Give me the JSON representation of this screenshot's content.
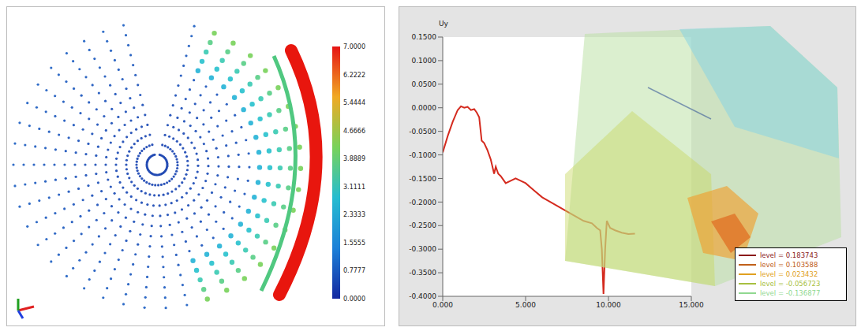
{
  "chart_data": [
    {
      "type": "point_cloud",
      "colorbar": {
        "range": [
          0,
          7
        ],
        "ticks": [
          {
            "value": 0,
            "label": "0.0000"
          },
          {
            "value": 0.7777,
            "label": "0.7777"
          },
          {
            "value": 1.5555,
            "label": "1.5555"
          },
          {
            "value": 2.3333,
            "label": "2.3333"
          },
          {
            "value": 3.1111,
            "label": "3.1111"
          },
          {
            "value": 3.8889,
            "label": "3.8889"
          },
          {
            "value": 4.6666,
            "label": "4.6666"
          },
          {
            "value": 5.4444,
            "label": "5.4444"
          },
          {
            "value": 6.2222,
            "label": "6.2222"
          },
          {
            "value": 7,
            "label": "7.0000"
          }
        ]
      }
    },
    {
      "type": "line",
      "y_label": "Uy",
      "color": "#d42a1e",
      "x": [
        0,
        0.3,
        0.6,
        0.9,
        1.1,
        1.3,
        1.5,
        1.7,
        1.9,
        2.05,
        2.2,
        2.35,
        2.5,
        2.7,
        2.9,
        3.1,
        3.2,
        3.35,
        3.5,
        3.8,
        4.1,
        4.4,
        4.7,
        5.0,
        5.5,
        6.0,
        6.5,
        7.0,
        7.5,
        8.0,
        8.5,
        9.0,
        9.3,
        9.5,
        9.6,
        9.7,
        9.8,
        9.9,
        10.1,
        10.4,
        10.8,
        11.2,
        11.6
      ],
      "values": [
        -0.095,
        -0.06,
        -0.03,
        -0.005,
        0.003,
        0.0,
        0.002,
        -0.005,
        -0.003,
        -0.01,
        -0.02,
        -0.07,
        -0.075,
        -0.09,
        -0.11,
        -0.14,
        -0.125,
        -0.14,
        -0.145,
        -0.16,
        -0.155,
        -0.15,
        -0.155,
        -0.16,
        -0.175,
        -0.19,
        -0.2,
        -0.21,
        -0.22,
        -0.23,
        -0.24,
        -0.245,
        -0.255,
        -0.26,
        -0.3,
        -0.395,
        -0.3,
        -0.24,
        -0.255,
        -0.26,
        -0.265,
        -0.268,
        -0.267
      ],
      "xlim": [
        0,
        15
      ],
      "xticks": [
        {
          "value": 0,
          "label": "0.000"
        },
        {
          "value": 5,
          "label": "5.000"
        },
        {
          "value": 10,
          "label": "10.000"
        },
        {
          "value": 15,
          "label": "15.000"
        }
      ],
      "ylim": [
        -0.4,
        0.15
      ],
      "yticks": [
        {
          "value": -0.4,
          "label": "-0.4000"
        },
        {
          "value": -0.35,
          "label": "-0.3500"
        },
        {
          "value": -0.3,
          "label": "-0.3000"
        },
        {
          "value": -0.25,
          "label": "-0.2500"
        },
        {
          "value": -0.2,
          "label": "-0.2000"
        },
        {
          "value": -0.15,
          "label": "-0.1500"
        },
        {
          "value": -0.1,
          "label": "-0.1000"
        },
        {
          "value": -0.05,
          "label": "-0.0500"
        },
        {
          "value": 0,
          "label": "0.0000"
        },
        {
          "value": 0.05,
          "label": "0.0500"
        },
        {
          "value": 0.1,
          "label": "0.1000"
        },
        {
          "value": 0.15,
          "label": "0.1500"
        }
      ],
      "grid": false,
      "contour_levels": [
        {
          "value": 0.183743,
          "label": "level = 0.183743",
          "color": "#8b1a1a"
        },
        {
          "value": 0.103588,
          "label": "level = 0.103588",
          "color": "#c0601a"
        },
        {
          "value": 0.023432,
          "label": "level = 0.023432",
          "color": "#e0a020"
        },
        {
          "value": -0.056723,
          "label": "level = -0.056723",
          "color": "#a8c040"
        },
        {
          "value": -0.136877,
          "label": "level = -0.136877",
          "color": "#90d890"
        }
      ]
    }
  ]
}
